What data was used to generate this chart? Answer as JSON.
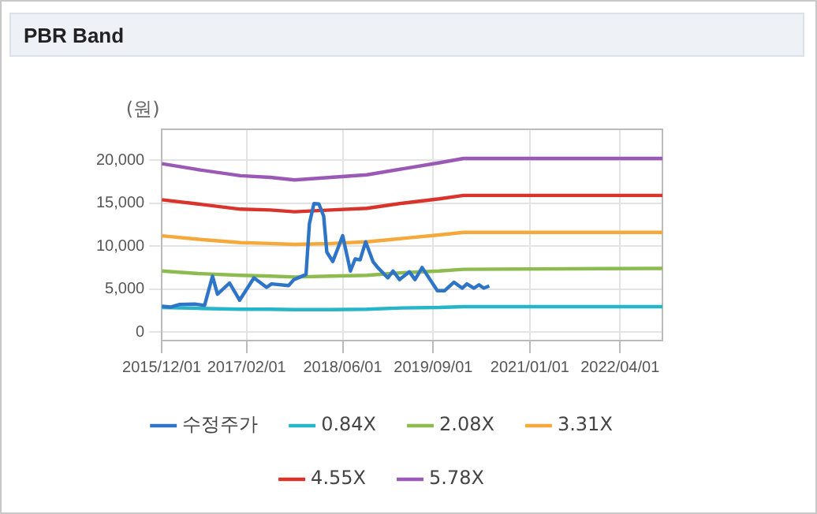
{
  "chart_data": {
    "type": "line",
    "title": "PBR Band",
    "ylabel": "(원)",
    "marker": "none",
    "grid": true,
    "legend": "bottom",
    "xlim": [
      "2015-12-01",
      "2022-11-01"
    ],
    "xticks": [
      {
        "value": "2015-12-01",
        "label": "2015/12/01"
      },
      {
        "value": "2017-02-01",
        "label": "2017/02/01"
      },
      {
        "value": "2018-06-01",
        "label": "2018/06/01"
      },
      {
        "value": "2019-09-01",
        "label": "2019/09/01"
      },
      {
        "value": "2021-01-01",
        "label": "2021/01/01"
      },
      {
        "value": "2022-04-01",
        "label": "2022/04/01"
      }
    ],
    "ylim": [
      -1000,
      23600
    ],
    "yticks": [
      0,
      {
        "value": 5000,
        "label": "5,000"
      },
      {
        "value": 10000,
        "label": "10,000"
      },
      {
        "value": 15000,
        "label": "15,000"
      },
      {
        "value": 20000,
        "label": "20,000"
      }
    ],
    "series": [
      {
        "name": "수정주가",
        "color": "#2e75c7",
        "x": [
          "2015-12-01",
          "2016-01-13",
          "2016-03-01",
          "2016-05-15",
          "2016-07-04",
          "2016-08-13",
          "2016-09-07",
          "2016-11-07",
          "2016-12-28",
          "2017-03-10",
          "2017-05-13",
          "2017-06-07",
          "2017-09-01",
          "2017-09-28",
          "2017-11-28",
          "2017-12-15",
          "2018-01-07",
          "2018-02-01",
          "2018-02-25",
          "2018-03-13",
          "2018-04-12",
          "2018-06-01",
          "2018-07-10",
          "2018-08-03",
          "2018-08-28",
          "2018-09-25",
          "2018-11-01",
          "2018-11-25",
          "2019-01-15",
          "2019-02-10",
          "2019-03-15",
          "2019-05-04",
          "2019-06-01",
          "2019-07-07",
          "2019-09-22",
          "2019-10-28",
          "2019-12-15",
          "2020-01-25",
          "2020-02-18",
          "2020-03-25",
          "2020-04-19",
          "2020-05-13",
          "2020-06-10"
        ],
        "values": [
          3000,
          2900,
          3200,
          3250,
          3100,
          6500,
          4400,
          5700,
          3700,
          6300,
          5200,
          5600,
          5400,
          6100,
          6700,
          12600,
          14950,
          14900,
          13500,
          9300,
          8200,
          11200,
          7100,
          8500,
          8400,
          10500,
          8200,
          7500,
          6300,
          7100,
          6100,
          7000,
          6100,
          7500,
          4800,
          4800,
          5800,
          5100,
          5600,
          5100,
          5500,
          5100,
          5350
        ]
      },
      {
        "name": "0.84X",
        "color": "#27b5c9",
        "x": [
          "2015-12-01",
          "2016-06-01",
          "2017-01-01",
          "2017-06-01",
          "2017-10-01",
          "2018-04-01",
          "2018-10-01",
          "2019-04-01",
          "2019-10-01",
          "2020-02-01",
          "2022-11-01"
        ],
        "values": [
          2850,
          2750,
          2650,
          2650,
          2600,
          2600,
          2650,
          2800,
          2850,
          2950,
          2950
        ]
      },
      {
        "name": "2.08X",
        "color": "#8dbb4f",
        "x": [
          "2015-12-01",
          "2016-06-01",
          "2017-01-01",
          "2017-06-01",
          "2017-10-01",
          "2018-04-01",
          "2018-10-01",
          "2019-04-01",
          "2019-10-01",
          "2020-02-01",
          "2022-11-01"
        ],
        "values": [
          7100,
          6800,
          6600,
          6500,
          6400,
          6500,
          6600,
          6900,
          7100,
          7300,
          7400
        ]
      },
      {
        "name": "3.31X",
        "color": "#f5a93a",
        "x": [
          "2015-12-01",
          "2016-06-01",
          "2017-01-01",
          "2017-06-01",
          "2017-10-01",
          "2018-04-01",
          "2018-10-01",
          "2019-04-01",
          "2019-10-01",
          "2020-02-01",
          "2022-11-01"
        ],
        "values": [
          11200,
          10800,
          10400,
          10300,
          10200,
          10300,
          10500,
          10900,
          11300,
          11600,
          11600
        ]
      },
      {
        "name": "4.55X",
        "color": "#d9342b",
        "x": [
          "2015-12-01",
          "2016-06-01",
          "2017-01-01",
          "2017-06-01",
          "2017-10-01",
          "2018-04-01",
          "2018-10-01",
          "2019-04-01",
          "2019-10-01",
          "2020-02-01",
          "2022-11-01"
        ],
        "values": [
          15400,
          14900,
          14300,
          14200,
          14000,
          14200,
          14400,
          15000,
          15500,
          15900,
          15900
        ]
      },
      {
        "name": "5.78X",
        "color": "#9b59b6",
        "x": [
          "2015-12-01",
          "2016-06-01",
          "2017-01-01",
          "2017-06-01",
          "2017-10-01",
          "2018-04-01",
          "2018-10-01",
          "2019-04-01",
          "2019-10-01",
          "2020-02-01",
          "2022-11-01"
        ],
        "values": [
          19600,
          18900,
          18200,
          18000,
          17700,
          18000,
          18300,
          19000,
          19700,
          20200,
          20200
        ]
      }
    ]
  }
}
